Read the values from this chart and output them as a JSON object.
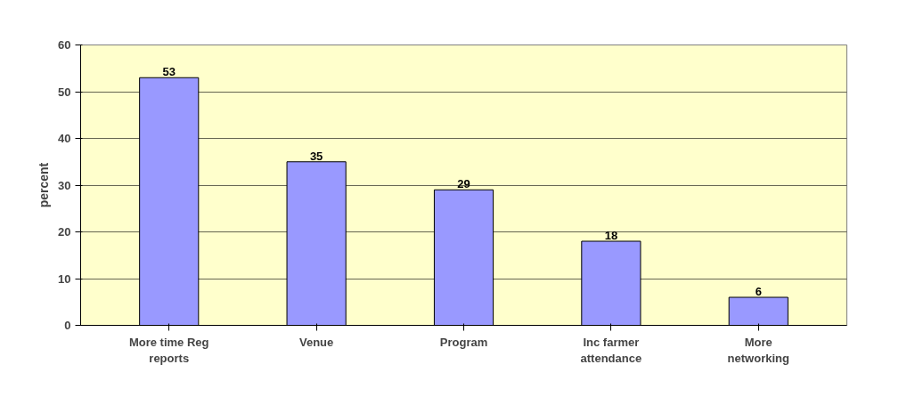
{
  "chart_data": {
    "type": "bar",
    "ylabel": "percent",
    "categories": [
      "More time Reg reports",
      "Venue",
      "Program",
      "Inc farmer attendance",
      "More networking"
    ],
    "values": [
      53,
      35,
      29,
      18,
      6
    ],
    "color": "#9999ff",
    "ylim": [
      0,
      60
    ],
    "yticks": [
      0,
      10,
      20,
      30,
      40,
      50,
      60
    ],
    "grid": "y",
    "data_labels": true
  }
}
